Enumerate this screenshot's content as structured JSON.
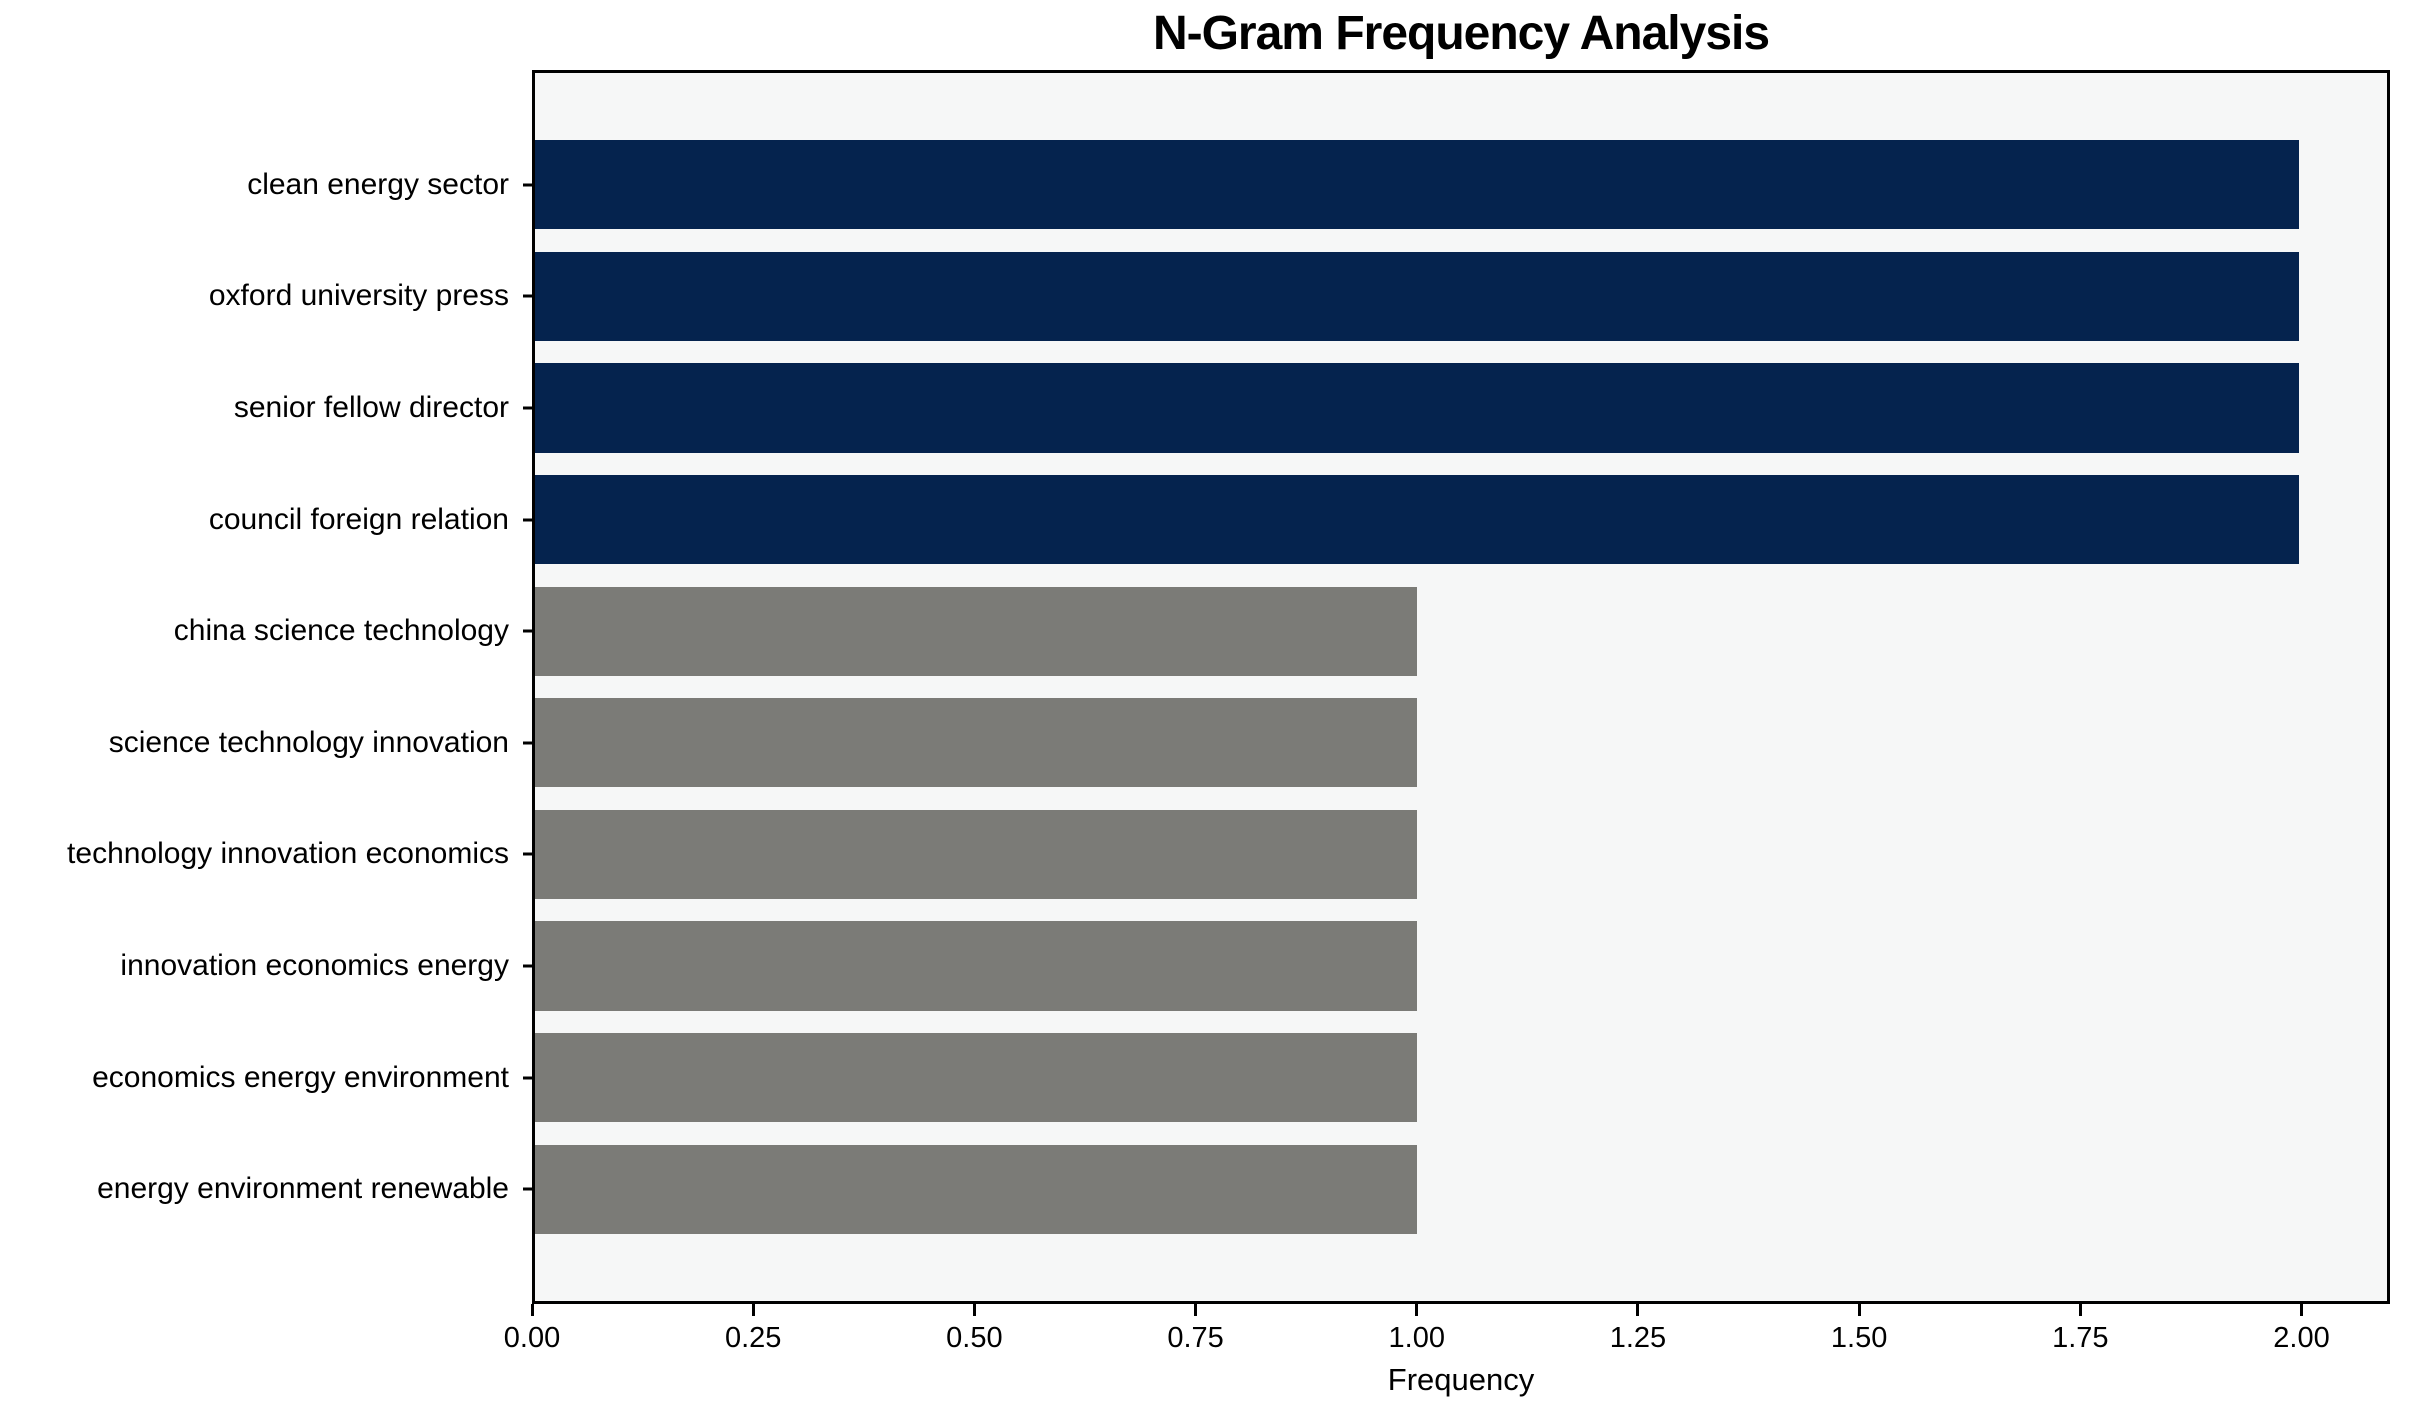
{
  "chart_data": {
    "type": "bar",
    "orientation": "horizontal",
    "title": "N-Gram Frequency Analysis",
    "xlabel": "Frequency",
    "ylabel": "",
    "categories": [
      "clean energy sector",
      "oxford university press",
      "senior fellow director",
      "council foreign relation",
      "china science technology",
      "science technology innovation",
      "technology innovation economics",
      "innovation economics energy",
      "economics energy environment",
      "energy environment renewable"
    ],
    "values": [
      2,
      2,
      2,
      2,
      1,
      1,
      1,
      1,
      1,
      1
    ],
    "bar_color_keys": [
      "highlight",
      "highlight",
      "highlight",
      "highlight",
      "default",
      "default",
      "default",
      "default",
      "default",
      "default"
    ],
    "xlim": [
      0,
      2.1
    ],
    "xticks": {
      "values": [
        0.0,
        0.25,
        0.5,
        0.75,
        1.0,
        1.25,
        1.5,
        1.75,
        2.0
      ],
      "labels": [
        "0.00",
        "0.25",
        "0.50",
        "0.75",
        "1.00",
        "1.25",
        "1.50",
        "1.75",
        "2.00"
      ]
    },
    "grid": false,
    "legend": null,
    "colors": {
      "highlight": "#05234e",
      "default": "#7b7b77",
      "plot_background": "#f6f7f7",
      "figure_background": "#ffffff",
      "text": "#000000",
      "axis": "#000000"
    }
  }
}
